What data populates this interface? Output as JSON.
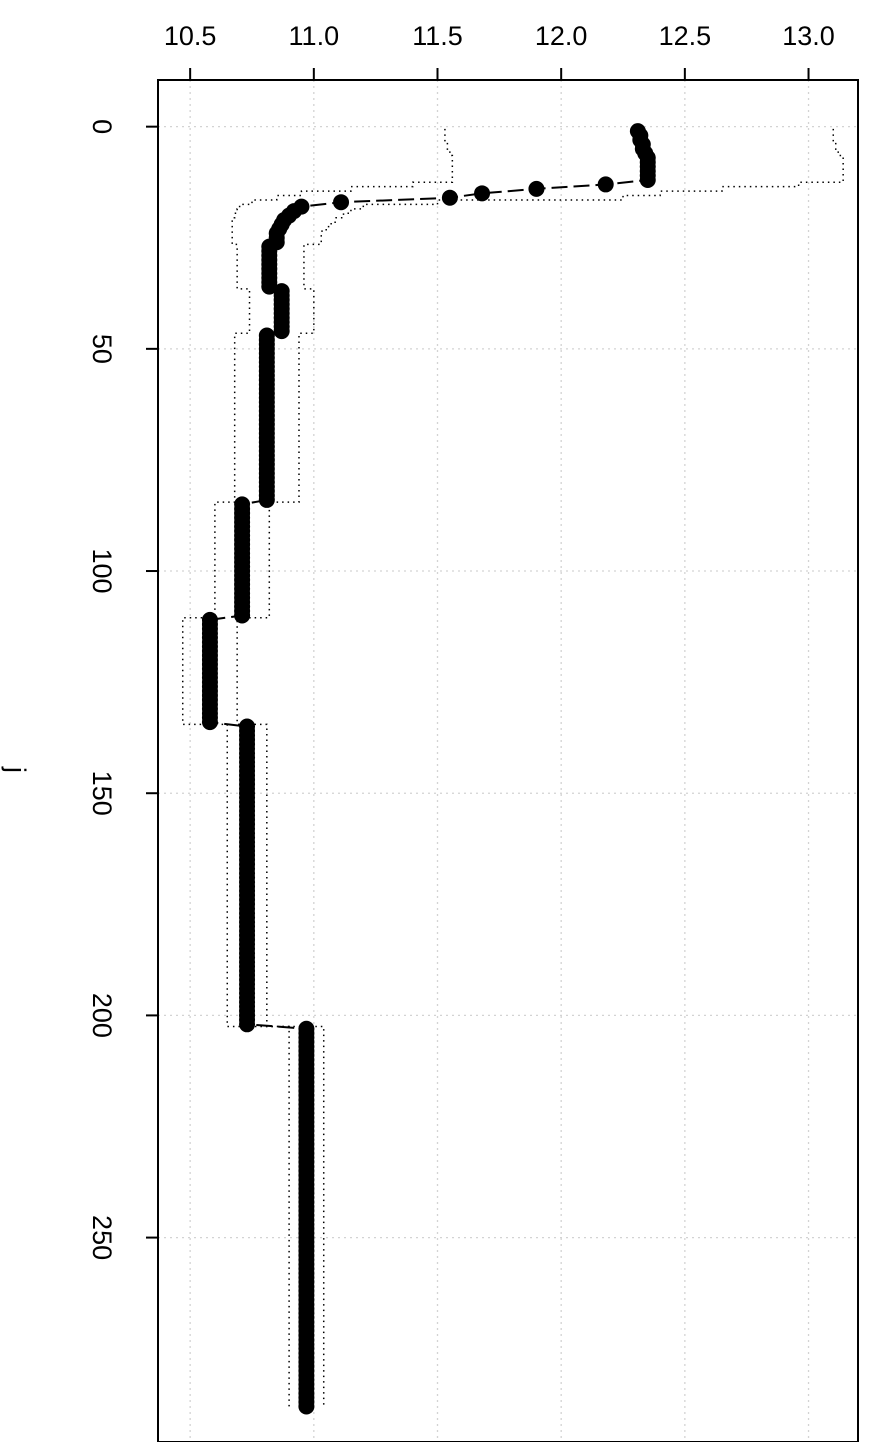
{
  "chart_data": {
    "type": "line",
    "orientation": "rotated",
    "title": "",
    "xlabel": "",
    "ylabel": "j",
    "value_axis": {
      "position": "top",
      "ticks": [
        "10.5",
        "11.0",
        "11.5",
        "12.0",
        "12.5",
        "13.0"
      ],
      "range": [
        10.37,
        13.2
      ]
    },
    "index_axis": {
      "position": "left",
      "ticks": [
        "0",
        "50",
        "100",
        "150",
        "200",
        "250"
      ],
      "range": [
        -10.5,
        296
      ]
    },
    "grid": true,
    "line_style": "long-dash",
    "band_style": "dotted",
    "series": [
      {
        "segments": [
          {
            "j_start": 1,
            "j_end": 1,
            "value": 12.31,
            "lower": 11.53,
            "upper": 13.1
          },
          {
            "j_start": 2,
            "j_end": 2,
            "value": 12.32,
            "lower": 11.53,
            "upper": 13.1
          },
          {
            "j_start": 3,
            "j_end": 3,
            "value": 12.32,
            "lower": 11.53,
            "upper": 13.1
          },
          {
            "j_start": 4,
            "j_end": 4,
            "value": 12.33,
            "lower": 11.54,
            "upper": 13.11
          },
          {
            "j_start": 5,
            "j_end": 5,
            "value": 12.33,
            "lower": 11.54,
            "upper": 13.11
          },
          {
            "j_start": 6,
            "j_end": 6,
            "value": 12.34,
            "lower": 11.55,
            "upper": 13.12
          },
          {
            "j_start": 7,
            "j_end": 12,
            "value": 12.35,
            "lower": 11.56,
            "upper": 13.14
          },
          {
            "j_start": 13,
            "j_end": 13,
            "value": 12.18,
            "lower": 11.4,
            "upper": 12.96
          },
          {
            "j_start": 14,
            "j_end": 14,
            "value": 11.9,
            "lower": 11.15,
            "upper": 12.65
          },
          {
            "j_start": 15,
            "j_end": 15,
            "value": 11.68,
            "lower": 10.95,
            "upper": 12.4
          },
          {
            "j_start": 16,
            "j_end": 16,
            "value": 11.55,
            "lower": 10.85,
            "upper": 12.25
          },
          {
            "j_start": 17,
            "j_end": 17,
            "value": 11.11,
            "lower": 10.75,
            "upper": 11.5
          },
          {
            "j_start": 18,
            "j_end": 18,
            "value": 10.95,
            "lower": 10.7,
            "upper": 11.2
          },
          {
            "j_start": 19,
            "j_end": 19,
            "value": 10.92,
            "lower": 10.69,
            "upper": 11.15
          },
          {
            "j_start": 20,
            "j_end": 20,
            "value": 10.9,
            "lower": 10.68,
            "upper": 11.12
          },
          {
            "j_start": 21,
            "j_end": 21,
            "value": 10.88,
            "lower": 10.67,
            "upper": 11.09
          },
          {
            "j_start": 22,
            "j_end": 22,
            "value": 10.87,
            "lower": 10.67,
            "upper": 11.07
          },
          {
            "j_start": 23,
            "j_end": 23,
            "value": 10.86,
            "lower": 10.67,
            "upper": 11.05
          },
          {
            "j_start": 24,
            "j_end": 26,
            "value": 10.85,
            "lower": 10.67,
            "upper": 11.03
          },
          {
            "j_start": 27,
            "j_end": 36,
            "value": 10.82,
            "lower": 10.69,
            "upper": 10.96
          },
          {
            "j_start": 37,
            "j_end": 46,
            "value": 10.87,
            "lower": 10.74,
            "upper": 11.0
          },
          {
            "j_start": 47,
            "j_end": 84,
            "value": 10.81,
            "lower": 10.68,
            "upper": 10.94
          },
          {
            "j_start": 85,
            "j_end": 110,
            "value": 10.71,
            "lower": 10.6,
            "upper": 10.82
          },
          {
            "j_start": 111,
            "j_end": 134,
            "value": 10.58,
            "lower": 10.47,
            "upper": 10.69
          },
          {
            "j_start": 135,
            "j_end": 202,
            "value": 10.73,
            "lower": 10.65,
            "upper": 10.81
          },
          {
            "j_start": 203,
            "j_end": 288,
            "value": 10.97,
            "lower": 10.9,
            "upper": 11.04
          }
        ]
      }
    ]
  }
}
